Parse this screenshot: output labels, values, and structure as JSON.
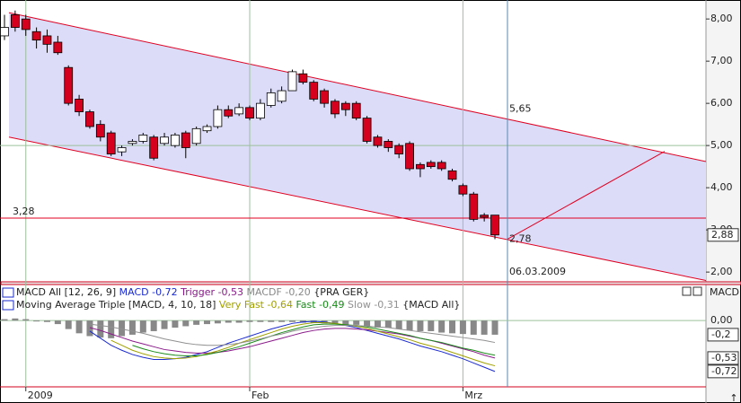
{
  "chart_data": [
    {
      "type": "candlestick",
      "categories": [
        null,
        null,
        "2009",
        null,
        null,
        null,
        null,
        null,
        null,
        null,
        null,
        null,
        null,
        null,
        null,
        null,
        null,
        null,
        null,
        null,
        null,
        null,
        null,
        "Feb",
        null,
        null,
        null,
        null,
        null,
        null,
        null,
        null,
        null,
        null,
        null,
        null,
        null,
        null,
        null,
        null,
        null,
        null,
        null,
        "Mrz",
        null,
        null,
        null
      ],
      "open": [
        7.6,
        8.1,
        8.0,
        7.7,
        7.6,
        7.45,
        6.85,
        6.1,
        5.8,
        5.5,
        5.3,
        4.85,
        5.05,
        5.1,
        5.2,
        5.05,
        5.0,
        5.3,
        5.05,
        5.35,
        5.45,
        5.85,
        5.75,
        5.9,
        5.65,
        5.95,
        6.05,
        6.3,
        6.7,
        6.5,
        6.3,
        6.05,
        6.0,
        6.0,
        5.65,
        5.2,
        5.1,
        5.0,
        5.05,
        4.55,
        4.6,
        4.6,
        4.4,
        4.05,
        3.85,
        3.35,
        3.35
      ],
      "high": [
        8.1,
        8.2,
        8.1,
        7.8,
        7.75,
        7.6,
        6.9,
        6.2,
        5.85,
        5.6,
        5.35,
        5.0,
        5.15,
        5.3,
        5.25,
        5.3,
        5.3,
        5.35,
        5.45,
        5.5,
        5.95,
        5.95,
        6.0,
        5.95,
        6.1,
        6.35,
        6.4,
        6.8,
        6.8,
        6.55,
        6.35,
        6.1,
        6.05,
        6.05,
        5.7,
        5.25,
        5.15,
        5.05,
        5.1,
        4.6,
        4.65,
        4.65,
        4.45,
        4.1,
        3.9,
        3.4,
        3.35
      ],
      "low": [
        7.5,
        7.7,
        7.6,
        7.3,
        7.2,
        7.15,
        5.95,
        5.7,
        5.4,
        5.1,
        4.75,
        4.75,
        5.0,
        5.05,
        4.65,
        5.0,
        4.95,
        4.7,
        5.0,
        5.3,
        5.4,
        5.65,
        5.7,
        5.6,
        5.6,
        5.9,
        6.0,
        6.3,
        6.45,
        6.05,
        5.9,
        5.65,
        5.7,
        5.6,
        5.05,
        4.95,
        4.85,
        4.7,
        4.4,
        4.25,
        4.45,
        4.4,
        4.15,
        3.8,
        3.2,
        3.2,
        2.78
      ],
      "close": [
        7.8,
        7.8,
        7.75,
        7.5,
        7.4,
        7.2,
        6.0,
        5.8,
        5.45,
        5.2,
        4.8,
        4.95,
        5.1,
        5.25,
        4.7,
        5.2,
        5.25,
        4.95,
        5.4,
        5.45,
        5.85,
        5.7,
        5.9,
        5.65,
        6.0,
        6.25,
        6.3,
        6.75,
        6.5,
        6.1,
        6.0,
        5.75,
        5.85,
        5.65,
        5.1,
        5.0,
        4.95,
        4.8,
        4.45,
        4.45,
        4.5,
        4.45,
        4.2,
        3.85,
        3.25,
        3.3,
        2.88
      ],
      "up_color": "#ffffff",
      "down_color": "#d4001e",
      "ylim": [
        1.79,
        8.45
      ],
      "yticks": [
        {
          "value": 2,
          "label": "2,00"
        },
        {
          "value": 3,
          "label": "3,00"
        },
        {
          "value": 4,
          "label": "4,00"
        },
        {
          "value": 5,
          "label": "5,00"
        },
        {
          "value": 6,
          "label": "6,00"
        },
        {
          "value": 7,
          "label": "7,00"
        },
        {
          "value": 8,
          "label": "8,00"
        }
      ],
      "grid_line": 5,
      "price_marker": {
        "value": 2.88,
        "label": "2,88"
      },
      "hline": {
        "value": 3.28,
        "label": "3,28"
      },
      "channel_upper": [
        8.15,
        4.62
      ],
      "channel_lower": [
        5.2,
        1.8
      ],
      "annotations": [
        {
          "value": 5.65,
          "label": "5,65"
        },
        {
          "value": 2.78,
          "label": "2,78"
        }
      ],
      "trendline": [
        2.78,
        4.86
      ],
      "crosshair_date": "06.03.2009"
    },
    {
      "type": "macd",
      "header": "MACD",
      "indicators": [
        {
          "title": "MACD All [12, 26, 9]",
          "source": "{PRA GER}"
        },
        {
          "title": "Moving Average Triple [MACD, 4, 10, 18]",
          "source": "{MACD All}"
        }
      ],
      "histogram": {
        "name": "MACDF",
        "value_label": "-0,20",
        "color": "#888888",
        "values": [
          0.02,
          0.03,
          0.02,
          0.0,
          -0.02,
          -0.05,
          -0.12,
          -0.18,
          -0.22,
          -0.24,
          -0.25,
          -0.22,
          -0.2,
          -0.17,
          -0.15,
          -0.12,
          -0.1,
          -0.08,
          -0.06,
          -0.05,
          -0.04,
          -0.03,
          -0.03,
          -0.02,
          -0.02,
          -0.02,
          -0.02,
          -0.02,
          -0.03,
          -0.03,
          -0.04,
          -0.05,
          -0.06,
          -0.06,
          -0.08,
          -0.1,
          -0.1,
          -0.12,
          -0.14,
          -0.15,
          -0.15,
          -0.17,
          -0.18,
          -0.19,
          -0.2,
          -0.2,
          -0.2
        ]
      },
      "series": [
        {
          "name": "MACD",
          "value_label": "-0,72",
          "color": "#1a2ad0",
          "indicator": 0,
          "values": [
            null,
            null,
            null,
            null,
            null,
            null,
            null,
            null,
            -0.15,
            -0.25,
            -0.35,
            -0.42,
            -0.48,
            -0.52,
            -0.55,
            -0.55,
            -0.54,
            -0.52,
            -0.48,
            -0.44,
            -0.38,
            -0.32,
            -0.27,
            -0.22,
            -0.17,
            -0.12,
            -0.08,
            -0.04,
            -0.02,
            -0.01,
            -0.02,
            -0.04,
            -0.07,
            -0.1,
            -0.14,
            -0.18,
            -0.22,
            -0.26,
            -0.31,
            -0.36,
            -0.4,
            -0.44,
            -0.49,
            -0.54,
            -0.6,
            -0.66,
            -0.72
          ]
        },
        {
          "name": "Trigger",
          "value_label": "-0,53",
          "color": "#8a1a8a",
          "indicator": 0,
          "values": [
            null,
            null,
            null,
            null,
            null,
            null,
            null,
            null,
            -0.1,
            -0.14,
            -0.19,
            -0.24,
            -0.29,
            -0.33,
            -0.37,
            -0.41,
            -0.43,
            -0.45,
            -0.46,
            -0.46,
            -0.45,
            -0.43,
            -0.4,
            -0.37,
            -0.33,
            -0.29,
            -0.25,
            -0.21,
            -0.17,
            -0.14,
            -0.12,
            -0.11,
            -0.11,
            -0.12,
            -0.13,
            -0.15,
            -0.17,
            -0.19,
            -0.22,
            -0.25,
            -0.28,
            -0.32,
            -0.36,
            -0.4,
            -0.44,
            -0.49,
            -0.53
          ]
        },
        {
          "name": "Very Fast",
          "value_label": "-0,64",
          "color": "#a0a000",
          "indicator": 1,
          "values": [
            null,
            null,
            null,
            null,
            null,
            null,
            null,
            null,
            null,
            null,
            -0.28,
            -0.35,
            -0.42,
            -0.47,
            -0.51,
            -0.53,
            -0.54,
            -0.53,
            -0.51,
            -0.47,
            -0.43,
            -0.38,
            -0.32,
            -0.27,
            -0.22,
            -0.17,
            -0.12,
            -0.08,
            -0.05,
            -0.03,
            -0.03,
            -0.04,
            -0.06,
            -0.08,
            -0.11,
            -0.15,
            -0.19,
            -0.23,
            -0.27,
            -0.32,
            -0.36,
            -0.4,
            -0.45,
            -0.5,
            -0.55,
            -0.6,
            -0.64
          ]
        },
        {
          "name": "Fast",
          "value_label": "-0,49",
          "color": "#1a8a1a",
          "indicator": 1,
          "values": [
            null,
            null,
            null,
            null,
            null,
            null,
            null,
            null,
            null,
            null,
            null,
            null,
            -0.35,
            -0.4,
            -0.44,
            -0.47,
            -0.49,
            -0.5,
            -0.5,
            -0.48,
            -0.45,
            -0.41,
            -0.37,
            -0.32,
            -0.27,
            -0.22,
            -0.17,
            -0.13,
            -0.09,
            -0.06,
            -0.05,
            -0.05,
            -0.06,
            -0.07,
            -0.09,
            -0.12,
            -0.15,
            -0.18,
            -0.21,
            -0.25,
            -0.28,
            -0.31,
            -0.35,
            -0.39,
            -0.42,
            -0.46,
            -0.49
          ]
        },
        {
          "name": "Slow",
          "value_label": "-0,31",
          "color": "#909090",
          "indicator": 1,
          "values": [
            null,
            null,
            null,
            null,
            null,
            null,
            null,
            null,
            -0.05,
            -0.07,
            -0.09,
            -0.12,
            -0.15,
            -0.18,
            -0.22,
            -0.26,
            -0.29,
            -0.32,
            -0.34,
            -0.35,
            -0.35,
            -0.34,
            -0.32,
            -0.29,
            -0.26,
            -0.22,
            -0.19,
            -0.15,
            -0.12,
            -0.1,
            -0.08,
            -0.07,
            -0.07,
            -0.07,
            -0.08,
            -0.09,
            -0.1,
            -0.12,
            -0.14,
            -0.16,
            -0.18,
            -0.2,
            -0.22,
            -0.24,
            -0.26,
            -0.28,
            -0.31
          ]
        }
      ],
      "ylim": [
        -0.925,
        0.51
      ],
      "yticks": [
        {
          "value": 0,
          "label": "0,00"
        }
      ],
      "markers": [
        {
          "value": -0.2,
          "label": "-0,2"
        },
        {
          "value": -0.53,
          "label": "-0,53"
        },
        {
          "value": -0.72,
          "label": "-0,72"
        }
      ]
    }
  ]
}
